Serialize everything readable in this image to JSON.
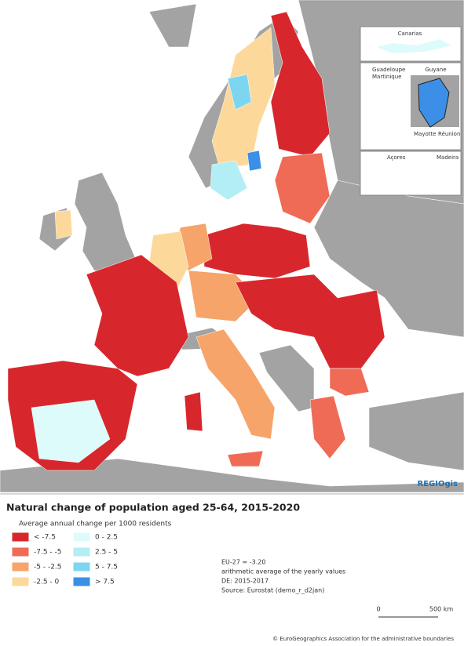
{
  "map": {
    "insets": {
      "canarias": "Canarias",
      "guadeloupe": "Guadeloupe",
      "martinique": "Martinique",
      "guyane": "Guyane",
      "mayotte": "Mayotte",
      "reunion": "Réunion",
      "acores": "Açores",
      "madeira": "Madeira"
    },
    "logo": "REGIOgis"
  },
  "legend": {
    "title": "Natural change of population aged 25-64, 2015-2020",
    "subtitle": "Average annual change per 1000 residents",
    "items": [
      {
        "label": "< -7.5",
        "color": "#d7272d"
      },
      {
        "label": "-7.5 - -5",
        "color": "#ef6b55"
      },
      {
        "label": "-5 - -2.5",
        "color": "#f6a46a"
      },
      {
        "label": "-2.5 - 0",
        "color": "#fcd99b"
      },
      {
        "label": "0 - 2.5",
        "color": "#ddfbfb"
      },
      {
        "label": "2.5 - 5",
        "color": "#b3eef5"
      },
      {
        "label": "5 - 7.5",
        "color": "#7cd6f0"
      },
      {
        "label": "> 7.5",
        "color": "#3b8fe6"
      }
    ]
  },
  "notes": [
    "EU-27 = -3.20",
    "arithmetic average of the yearly values",
    "DE: 2015-2017",
    "Source: Eurostat (demo_r_d2jan)"
  ],
  "scale": {
    "start": "0",
    "end": "500 km"
  },
  "footer": "© EuroGeographics Association for the administrative boundaries"
}
